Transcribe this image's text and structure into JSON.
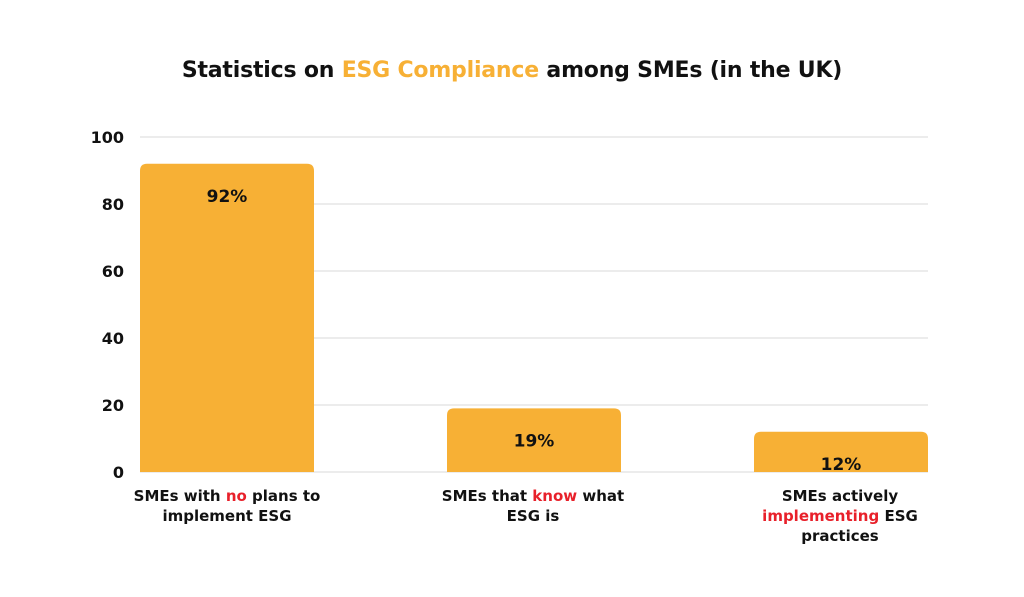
{
  "chart_data": {
    "type": "bar",
    "title": {
      "prefix": "Statistics on ",
      "highlight": "ESG Compliance",
      "suffix": " among SMEs (in the UK)"
    },
    "xlabel": "",
    "ylabel": "",
    "ylim": [
      0,
      100
    ],
    "yticks": [
      "0",
      "20",
      "40",
      "60",
      "80",
      "100"
    ],
    "grid": true,
    "categories": [
      {
        "pre": "SMEs with ",
        "highlight": "no",
        "post": " plans to implement ESG"
      },
      {
        "pre": "SMEs that ",
        "highlight": "know",
        "post": " what ESG is"
      },
      {
        "pre": "SMEs actively ",
        "highlight": "implementing",
        "post": " ESG practices"
      }
    ],
    "values": [
      92,
      19,
      12
    ],
    "data_labels": [
      "92%",
      "19%",
      "12%"
    ]
  },
  "colors": {
    "bar": "#f7b035",
    "title_highlight": "#f7b035",
    "label_highlight": "#e8202a",
    "grid": "#d9d9d9",
    "text": "#111111"
  }
}
